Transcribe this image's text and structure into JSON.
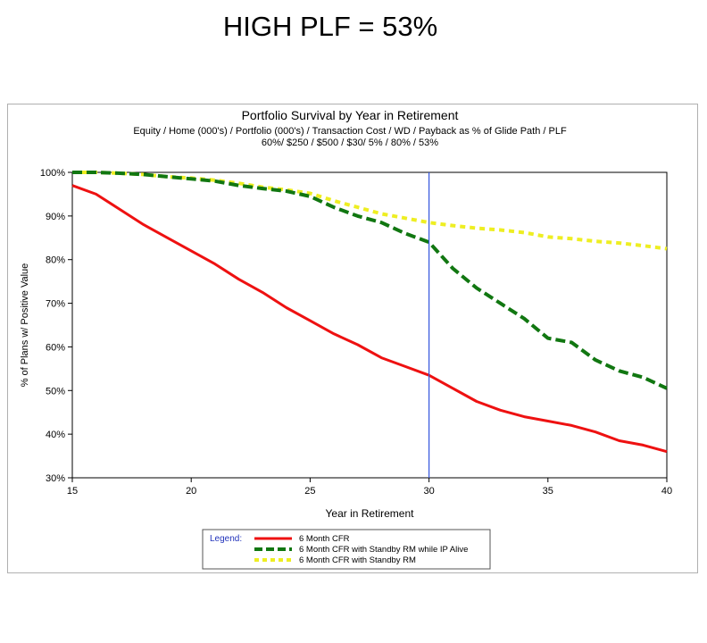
{
  "page_title": "HIGH PLF = 53%",
  "chart_data": {
    "type": "line",
    "title": "Portfolio Survival by Year in Retirement",
    "subtitle_lines": [
      "Equity / Home (000's) / Portfolio (000's) / Transaction Cost / WD / Payback as % of Glide Path / PLF",
      "60%/ $250 / $500 / $30/ 5% / 80% / 53%"
    ],
    "xlabel": "Year in Retirement",
    "ylabel": "% of Plans w/ Positive Value",
    "xlim": [
      15,
      40
    ],
    "ylim": [
      0.3,
      1.0
    ],
    "x_ticks": [
      15,
      20,
      25,
      30,
      35,
      40
    ],
    "y_ticks": [
      0.3,
      0.4,
      0.5,
      0.6,
      0.7,
      0.8,
      0.9,
      1.0
    ],
    "x_tick_labels": [
      "15",
      "20",
      "25",
      "30",
      "35",
      "40"
    ],
    "y_tick_labels": [
      "30%",
      "40%",
      "50%",
      "60%",
      "70%",
      "80%",
      "90%",
      "100%"
    ],
    "reference_line": {
      "x": 30,
      "color": "#3355dd"
    },
    "legend": {
      "title": "Legend:",
      "placement": "bottom-center"
    },
    "series": [
      {
        "name": "6 Month CFR",
        "color": "#ee1111",
        "style": "solid",
        "x": [
          15,
          16,
          17,
          18,
          19,
          20,
          21,
          22,
          23,
          24,
          25,
          26,
          27,
          28,
          29,
          30,
          31,
          32,
          33,
          34,
          35,
          36,
          37,
          38,
          39,
          40
        ],
        "y": [
          0.97,
          0.95,
          0.915,
          0.88,
          0.85,
          0.82,
          0.79,
          0.755,
          0.725,
          0.69,
          0.66,
          0.63,
          0.605,
          0.575,
          0.555,
          0.535,
          0.505,
          0.475,
          0.455,
          0.44,
          0.43,
          0.42,
          0.405,
          0.385,
          0.375,
          0.36
        ]
      },
      {
        "name": "6 Month CFR with Standby RM while IP Alive",
        "color": "#117711",
        "style": "dashed",
        "x": [
          15,
          16,
          17,
          18,
          19,
          20,
          21,
          22,
          23,
          24,
          25,
          26,
          27,
          28,
          29,
          30,
          31,
          32,
          33,
          34,
          35,
          36,
          37,
          38,
          39,
          40
        ],
        "y": [
          1.0,
          1.0,
          0.998,
          0.995,
          0.99,
          0.985,
          0.98,
          0.97,
          0.963,
          0.957,
          0.945,
          0.92,
          0.9,
          0.885,
          0.86,
          0.84,
          0.78,
          0.735,
          0.7,
          0.665,
          0.62,
          0.61,
          0.57,
          0.545,
          0.53,
          0.505
        ]
      },
      {
        "name": "6 Month CFR with Standby RM",
        "color": "#eeee22",
        "style": "dashed",
        "x": [
          15,
          16,
          17,
          18,
          19,
          20,
          21,
          22,
          23,
          24,
          25,
          26,
          27,
          28,
          29,
          30,
          31,
          32,
          33,
          34,
          35,
          36,
          37,
          38,
          39,
          40
        ],
        "y": [
          1.0,
          1.0,
          0.998,
          0.995,
          0.99,
          0.987,
          0.982,
          0.975,
          0.966,
          0.96,
          0.952,
          0.935,
          0.92,
          0.905,
          0.895,
          0.885,
          0.878,
          0.872,
          0.868,
          0.862,
          0.852,
          0.848,
          0.842,
          0.838,
          0.832,
          0.825
        ]
      }
    ]
  }
}
